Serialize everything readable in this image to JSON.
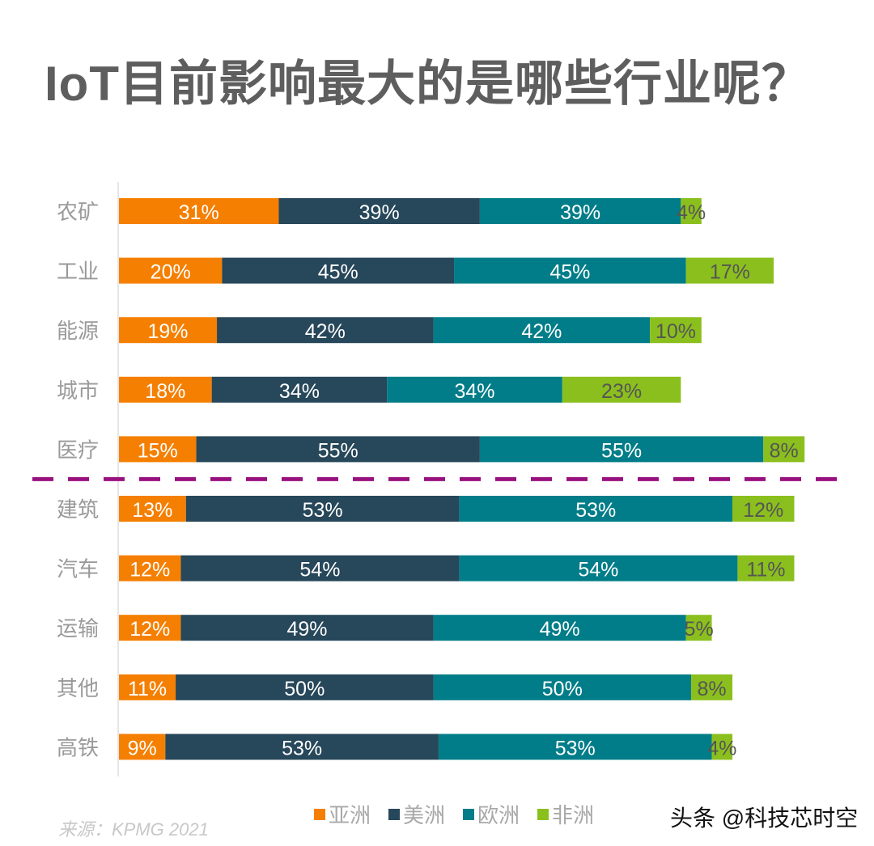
{
  "title": "IoT目前影响最大的是哪些行业呢？",
  "source": "来源：KPMG 2021",
  "watermark": "头条 @科技芯时空",
  "colors": {
    "亚洲": "#f57f00",
    "美洲": "#27475a",
    "欧洲": "#007d88",
    "非洲": "#8bbf1e",
    "divider": "#99107f"
  },
  "chart_data": {
    "type": "bar",
    "orientation": "horizontal",
    "stacked": true,
    "categories": [
      "农矿",
      "工业",
      "能源",
      "城市",
      "医疗",
      "建筑",
      "汽车",
      "运输",
      "其他",
      "高铁"
    ],
    "series": [
      {
        "name": "亚洲",
        "values": [
          31,
          20,
          19,
          18,
          15,
          13,
          12,
          12,
          11,
          9
        ]
      },
      {
        "name": "美洲",
        "values": [
          39,
          45,
          42,
          34,
          55,
          53,
          54,
          49,
          50,
          53
        ]
      },
      {
        "name": "欧洲",
        "values": [
          39,
          45,
          42,
          34,
          55,
          53,
          54,
          49,
          50,
          53
        ]
      },
      {
        "name": "非洲",
        "values": [
          4,
          17,
          10,
          23,
          8,
          12,
          11,
          5,
          8,
          4
        ]
      }
    ],
    "divider_after": "医疗",
    "legend": "bottom",
    "grid": false
  }
}
